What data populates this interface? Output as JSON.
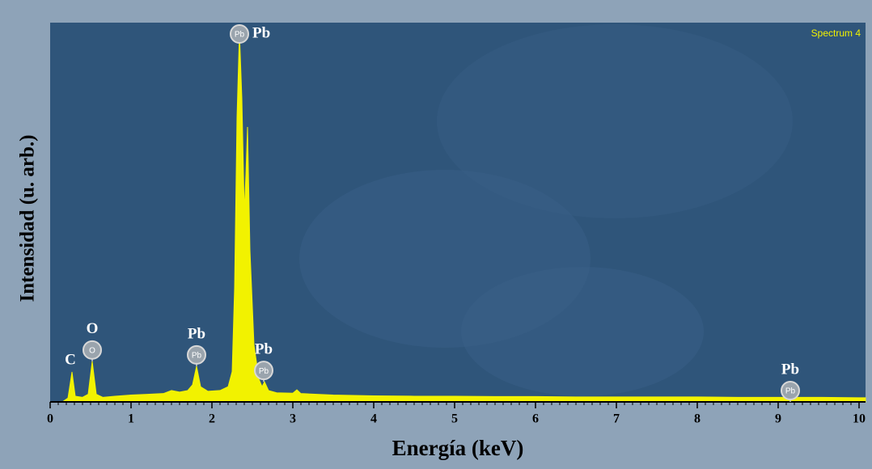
{
  "chart_data": {
    "type": "area",
    "title": "Spectrum 4",
    "x_label": "Energía (keV)",
    "y_label": "Intensidad (u. arb.)",
    "xlim": [
      0,
      10.08
    ],
    "ylim": [
      0,
      100
    ],
    "xticks": [
      0,
      1,
      2,
      3,
      4,
      5,
      6,
      7,
      8,
      9,
      10
    ],
    "color": "#f2f200",
    "x": [
      0.15,
      0.22,
      0.27,
      0.31,
      0.4,
      0.47,
      0.52,
      0.57,
      0.65,
      0.8,
      1.0,
      1.2,
      1.4,
      1.5,
      1.6,
      1.7,
      1.76,
      1.81,
      1.86,
      1.95,
      2.1,
      2.2,
      2.25,
      2.28,
      2.31,
      2.34,
      2.37,
      2.4,
      2.42,
      2.44,
      2.47,
      2.52,
      2.58,
      2.62,
      2.65,
      2.7,
      2.8,
      3.0,
      3.05,
      3.1,
      3.5,
      4.0,
      4.5,
      5.0,
      5.5,
      6.0,
      6.5,
      7.0,
      7.5,
      8.0,
      8.5,
      9.0,
      9.5,
      10.0,
      10.08
    ],
    "values": [
      0,
      1,
      7.9,
      1.5,
      1.2,
      2,
      10.7,
      2,
      1.2,
      1.5,
      1.8,
      2,
      2.2,
      3,
      2.6,
      3,
      4.5,
      9.4,
      4,
      2.8,
      3,
      4,
      8,
      30,
      75,
      97.4,
      80,
      50,
      60,
      72.5,
      40,
      15,
      6,
      4,
      5.3,
      3,
      2.4,
      2.3,
      3.2,
      2.2,
      1.8,
      1.6,
      1.5,
      1.5,
      1.4,
      1.4,
      1.3,
      1.3,
      1.3,
      1.3,
      1.2,
      1.2,
      1.2,
      1.1,
      1.1
    ],
    "annotations": [
      {
        "text": "C",
        "x": 0.27
      },
      {
        "text": "O",
        "badge": "O",
        "x": 0.52
      },
      {
        "text": "Pb",
        "badge": "Pb",
        "x": 1.81
      },
      {
        "text": "Pb",
        "badge": "Pb",
        "x": 2.34,
        "side": "right"
      },
      {
        "text": "Pb",
        "badge": "Pb",
        "x": 2.64
      },
      {
        "text": "Pb",
        "badge": "Pb",
        "x": 9.15
      }
    ]
  }
}
